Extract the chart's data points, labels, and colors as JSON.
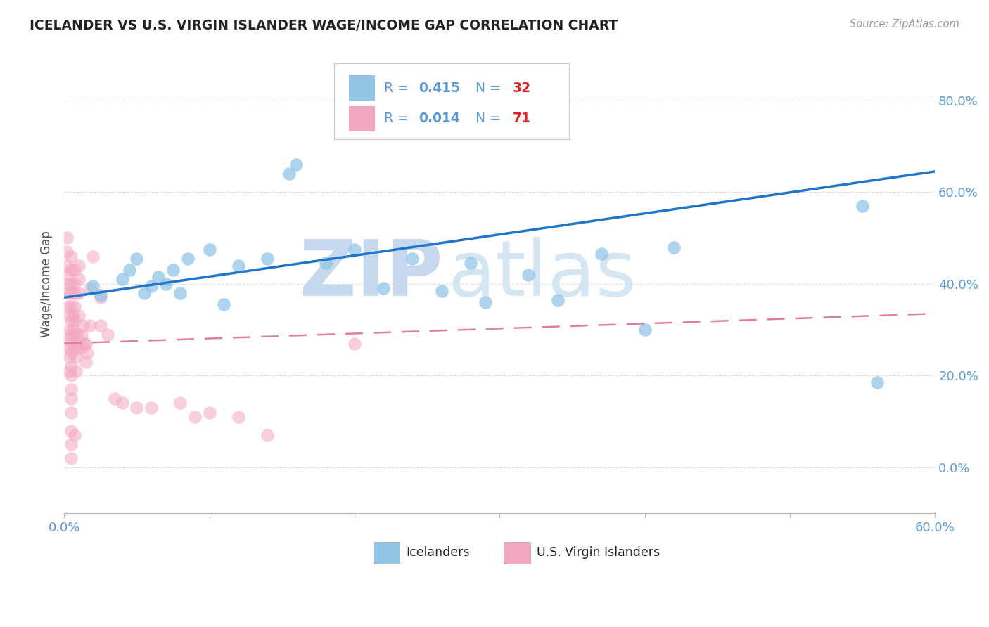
{
  "title": "ICELANDER VS U.S. VIRGIN ISLANDER WAGE/INCOME GAP CORRELATION CHART",
  "source": "Source: ZipAtlas.com",
  "xlim": [
    0.0,
    0.6
  ],
  "ylim": [
    -0.1,
    0.9
  ],
  "ylabel": "Wage/Income Gap",
  "watermark_zip": "ZIP",
  "watermark_atlas": "atlas",
  "blue_R": "0.415",
  "blue_N": "32",
  "pink_R": "0.014",
  "pink_N": "71",
  "blue_scatter_x": [
    0.02,
    0.025,
    0.04,
    0.045,
    0.05,
    0.055,
    0.06,
    0.065,
    0.07,
    0.075,
    0.08,
    0.085,
    0.1,
    0.11,
    0.12,
    0.14,
    0.155,
    0.16,
    0.18,
    0.2,
    0.22,
    0.24,
    0.26,
    0.28,
    0.29,
    0.32,
    0.34,
    0.37,
    0.4,
    0.42,
    0.55,
    0.56
  ],
  "blue_scatter_y": [
    0.395,
    0.375,
    0.41,
    0.43,
    0.455,
    0.38,
    0.395,
    0.415,
    0.4,
    0.43,
    0.38,
    0.455,
    0.475,
    0.355,
    0.44,
    0.455,
    0.64,
    0.66,
    0.445,
    0.475,
    0.39,
    0.455,
    0.385,
    0.445,
    0.36,
    0.42,
    0.365,
    0.465,
    0.3,
    0.48,
    0.57,
    0.185
  ],
  "pink_scatter_x": [
    0.002,
    0.002,
    0.002,
    0.003,
    0.003,
    0.003,
    0.003,
    0.004,
    0.004,
    0.004,
    0.004,
    0.004,
    0.004,
    0.005,
    0.005,
    0.005,
    0.005,
    0.005,
    0.005,
    0.005,
    0.005,
    0.005,
    0.005,
    0.005,
    0.005,
    0.005,
    0.005,
    0.005,
    0.005,
    0.005,
    0.006,
    0.006,
    0.007,
    0.007,
    0.007,
    0.007,
    0.007,
    0.007,
    0.007,
    0.008,
    0.008,
    0.008,
    0.009,
    0.009,
    0.01,
    0.01,
    0.01,
    0.01,
    0.012,
    0.012,
    0.013,
    0.014,
    0.015,
    0.015,
    0.016,
    0.018,
    0.018,
    0.02,
    0.025,
    0.025,
    0.03,
    0.035,
    0.04,
    0.05,
    0.06,
    0.08,
    0.09,
    0.1,
    0.12,
    0.14,
    0.2
  ],
  "pink_scatter_y": [
    0.5,
    0.47,
    0.44,
    0.42,
    0.4,
    0.38,
    0.35,
    0.33,
    0.3,
    0.28,
    0.26,
    0.24,
    0.21,
    0.46,
    0.43,
    0.4,
    0.38,
    0.35,
    0.32,
    0.29,
    0.27,
    0.25,
    0.22,
    0.2,
    0.17,
    0.15,
    0.12,
    0.08,
    0.05,
    0.02,
    0.33,
    0.3,
    0.43,
    0.4,
    0.38,
    0.35,
    0.32,
    0.29,
    0.07,
    0.27,
    0.24,
    0.21,
    0.29,
    0.26,
    0.44,
    0.41,
    0.38,
    0.33,
    0.29,
    0.26,
    0.31,
    0.27,
    0.27,
    0.23,
    0.25,
    0.39,
    0.31,
    0.46,
    0.37,
    0.31,
    0.29,
    0.15,
    0.14,
    0.13,
    0.13,
    0.14,
    0.11,
    0.12,
    0.11,
    0.07,
    0.27
  ],
  "blue_line_x": [
    0.0,
    0.6
  ],
  "blue_line_y": [
    0.37,
    0.645
  ],
  "pink_line_x": [
    0.0,
    0.6
  ],
  "pink_line_y": [
    0.27,
    0.335
  ],
  "blue_color": "#92c5e8",
  "pink_color": "#f4a7c0",
  "blue_line_color": "#2176c7",
  "pink_line_color": "#e08098",
  "title_color": "#222222",
  "tick_color": "#5b9bd5",
  "grid_color": "#cccccc",
  "watermark_zip_color": "#c5d8ed",
  "watermark_atlas_color": "#d5e6f3",
  "legend_R_color": "#5b9bd5",
  "legend_N_color": "#e02020",
  "source_color": "#999999",
  "ylabel_color": "#555555"
}
